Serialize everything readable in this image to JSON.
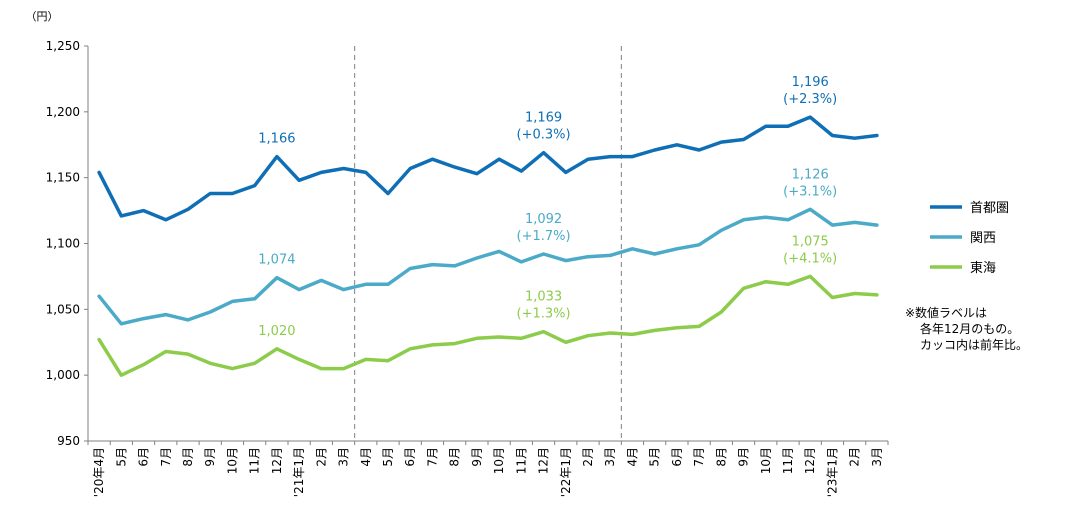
{
  "chart_data": {
    "type": "line",
    "y_unit_label": "（円）",
    "ylim": [
      950,
      1250
    ],
    "y_ticks": [
      {
        "value": 950,
        "label": "950"
      },
      {
        "value": 1000,
        "label": "1,000"
      },
      {
        "value": 1050,
        "label": "1,050"
      },
      {
        "value": 1100,
        "label": "1,100"
      },
      {
        "value": 1150,
        "label": "1,150"
      },
      {
        "value": 1200,
        "label": "1,200"
      },
      {
        "value": 1250,
        "label": "1,250"
      }
    ],
    "grid": false,
    "legend_position": "right",
    "categories": [
      "'20年4月",
      "5月",
      "6月",
      "7月",
      "8月",
      "9月",
      "10月",
      "11月",
      "12月",
      "'21年1月",
      "2月",
      "3月",
      "4月",
      "5月",
      "6月",
      "7月",
      "8月",
      "9月",
      "10月",
      "11月",
      "12月",
      "'22年1月",
      "2月",
      "3月",
      "4月",
      "5月",
      "6月",
      "7月",
      "8月",
      "9月",
      "10月",
      "11月",
      "12月",
      "'23年1月",
      "2月",
      "3月"
    ],
    "year_separators_after_index": [
      11,
      23
    ],
    "series": [
      {
        "name": "首都圏",
        "color": "#0f6fb6",
        "values": [
          1154,
          1121,
          1125,
          1118,
          1126,
          1138,
          1138,
          1144,
          1166,
          1148,
          1154,
          1157,
          1154,
          1138,
          1157,
          1164,
          1158,
          1153,
          1164,
          1155,
          1169,
          1154,
          1164,
          1166,
          1166,
          1171,
          1175,
          1171,
          1177,
          1179,
          1189,
          1189,
          1196,
          1182,
          1180,
          1182
        ],
        "labels": [
          {
            "index": 8,
            "lines": [
              "1,166"
            ]
          },
          {
            "index": 20,
            "lines": [
              "1,169",
              "(+0.3%)"
            ]
          },
          {
            "index": 32,
            "lines": [
              "1,196",
              "(+2.3%)"
            ]
          }
        ]
      },
      {
        "name": "関西",
        "color": "#4baac8",
        "values": [
          1060,
          1039,
          1043,
          1046,
          1042,
          1048,
          1056,
          1058,
          1074,
          1065,
          1072,
          1065,
          1069,
          1069,
          1081,
          1084,
          1083,
          1089,
          1094,
          1086,
          1092,
          1087,
          1090,
          1091,
          1096,
          1092,
          1096,
          1099,
          1110,
          1118,
          1120,
          1118,
          1126,
          1114,
          1116,
          1114
        ],
        "labels": [
          {
            "index": 8,
            "lines": [
              "1,074"
            ]
          },
          {
            "index": 20,
            "lines": [
              "1,092",
              "(+1.7%)"
            ]
          },
          {
            "index": 32,
            "lines": [
              "1,126",
              "(+3.1%)"
            ]
          }
        ]
      },
      {
        "name": "東海",
        "color": "#8ccc4a",
        "values": [
          1027,
          1000,
          1008,
          1018,
          1016,
          1009,
          1005,
          1009,
          1020,
          1012,
          1005,
          1005,
          1012,
          1011,
          1020,
          1023,
          1024,
          1028,
          1029,
          1028,
          1033,
          1025,
          1030,
          1032,
          1031,
          1034,
          1036,
          1037,
          1048,
          1066,
          1071,
          1069,
          1075,
          1059,
          1062,
          1061
        ],
        "labels": [
          {
            "index": 8,
            "lines": [
              "1,020"
            ]
          },
          {
            "index": 20,
            "lines": [
              "1,033",
              "(+1.3%)"
            ]
          },
          {
            "index": 32,
            "lines": [
              "1,075",
              "(+4.1%)"
            ]
          }
        ]
      }
    ],
    "note": {
      "lines": [
        "※数値ラベルは",
        "各年12月のもの。",
        "カッコ内は前年比。"
      ]
    }
  }
}
